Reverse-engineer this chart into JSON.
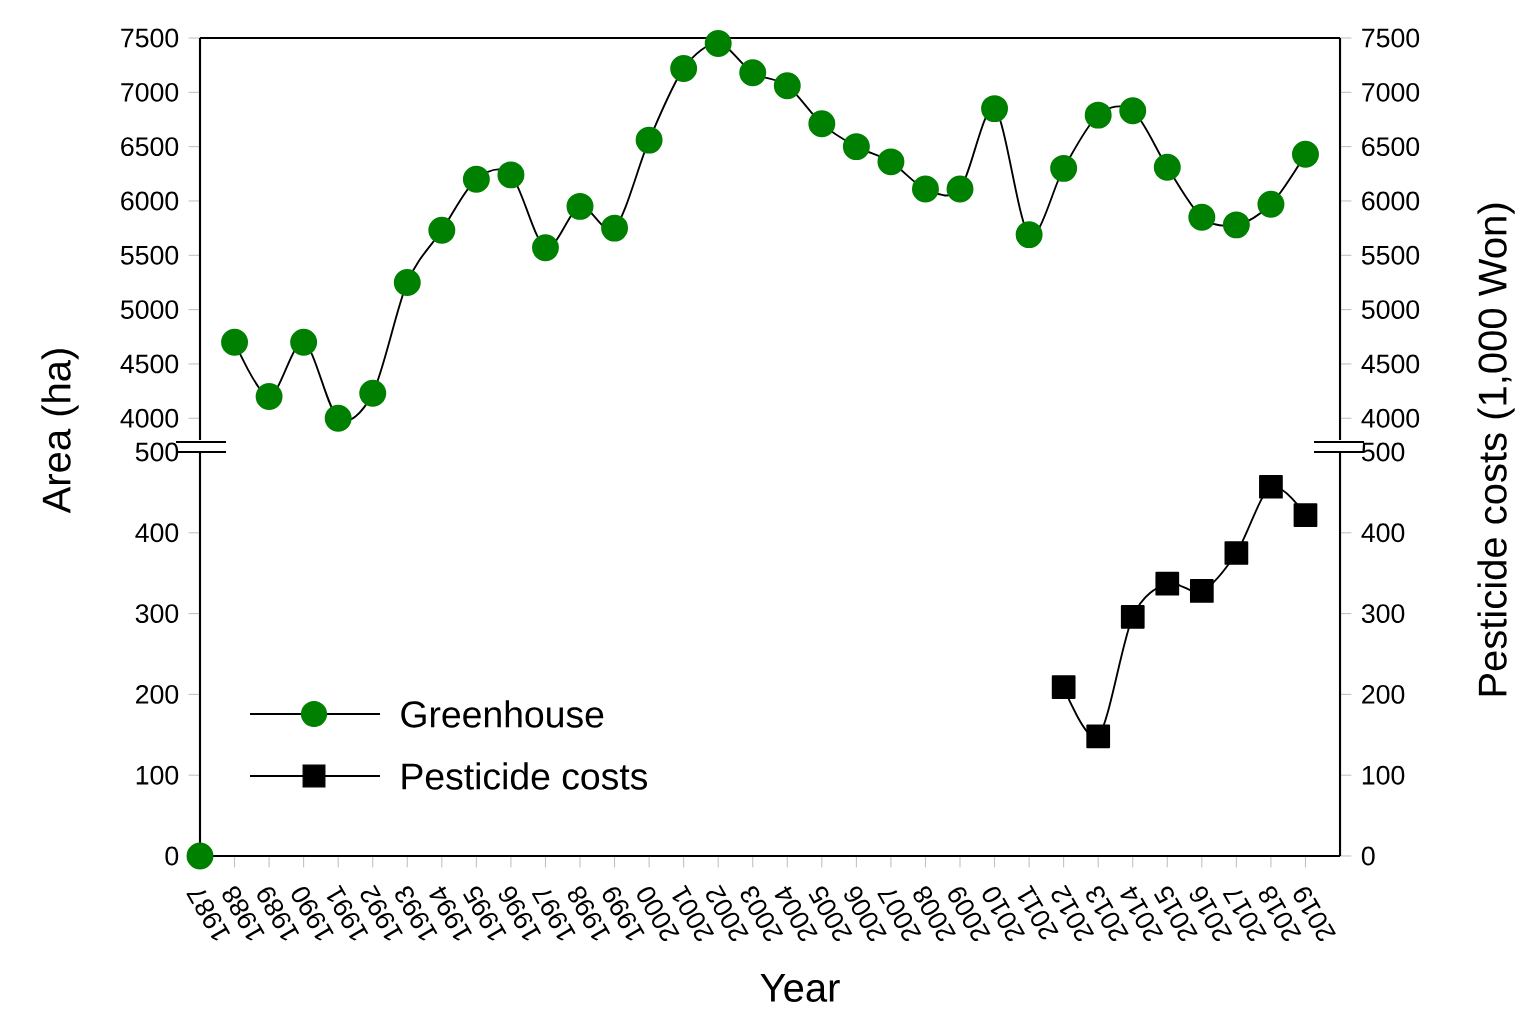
{
  "chart_data": [
    {
      "type": "line",
      "categories": [
        "1987",
        "1988",
        "1989",
        "1990",
        "1991",
        "1992",
        "1993",
        "1994",
        "1995",
        "1996",
        "1997",
        "1998",
        "1999",
        "2000",
        "2001",
        "2002",
        "2003",
        "2004",
        "2005",
        "2006",
        "2007",
        "2008",
        "2009",
        "2010",
        "2011",
        "2012",
        "2013",
        "2014",
        "2015",
        "2016",
        "2017",
        "2018",
        "2019"
      ],
      "ylabel": "Area (ha)",
      "y2label": "Pesticide costs (1,000 Won)",
      "ylim": [
        3800,
        7500
      ],
      "yticks": [
        4000,
        4500,
        5000,
        5500,
        6000,
        6500,
        7000,
        7500
      ],
      "y2lim": [
        3800,
        7500
      ],
      "y2ticks": [
        4000,
        4500,
        5000,
        5500,
        6000,
        6500,
        7000,
        7500
      ],
      "tick_labels": "y",
      "marker": "circle",
      "legend": false,
      "series": [
        {
          "color": "#008000",
          "values": [
            null,
            4700,
            4200,
            4700,
            4000,
            4230,
            5250,
            5730,
            6200,
            6240,
            5570,
            5950,
            5750,
            6560,
            7220,
            7450,
            7180,
            7060,
            6710,
            6500,
            6360,
            6110,
            6110,
            6850,
            5690,
            6300,
            6790,
            6830,
            6310,
            5850,
            5780,
            5970,
            6430
          ]
        }
      ]
    },
    {
      "type": "line",
      "categories": [
        "1987",
        "1988",
        "1989",
        "1990",
        "1991",
        "1992",
        "1993",
        "1994",
        "1995",
        "1996",
        "1997",
        "1998",
        "1999",
        "2000",
        "2001",
        "2002",
        "2003",
        "2004",
        "2005",
        "2006",
        "2007",
        "2008",
        "2009",
        "2010",
        "2011",
        "2012",
        "2013",
        "2014",
        "2015",
        "2016",
        "2017",
        "2018",
        "2019"
      ],
      "xlabel": "Year",
      "ylim": [
        0,
        500
      ],
      "yticks": [
        0,
        100,
        200,
        300,
        400,
        500
      ],
      "y2lim": [
        0,
        500
      ],
      "y2ticks": [
        0,
        100,
        200,
        300,
        400,
        500
      ],
      "legend": "left",
      "series": [
        {
          "name": "Greenhouse",
          "color": "#008000",
          "marker": "circle",
          "values": [
            0,
            null,
            null,
            null,
            null,
            null,
            null,
            null,
            null,
            null,
            null,
            null,
            null,
            null,
            null,
            null,
            null,
            null,
            null,
            null,
            null,
            null,
            null,
            null,
            null,
            null,
            null,
            null,
            null,
            null,
            null,
            null,
            null
          ]
        },
        {
          "name": "Pesticide costs",
          "color": "#000000",
          "marker": "square",
          "axis": "y2",
          "values": [
            null,
            null,
            null,
            null,
            null,
            null,
            null,
            null,
            null,
            null,
            null,
            null,
            null,
            null,
            null,
            null,
            null,
            null,
            null,
            null,
            null,
            null,
            null,
            null,
            null,
            209,
            148,
            296,
            337,
            328,
            375,
            457,
            422
          ]
        }
      ]
    }
  ]
}
